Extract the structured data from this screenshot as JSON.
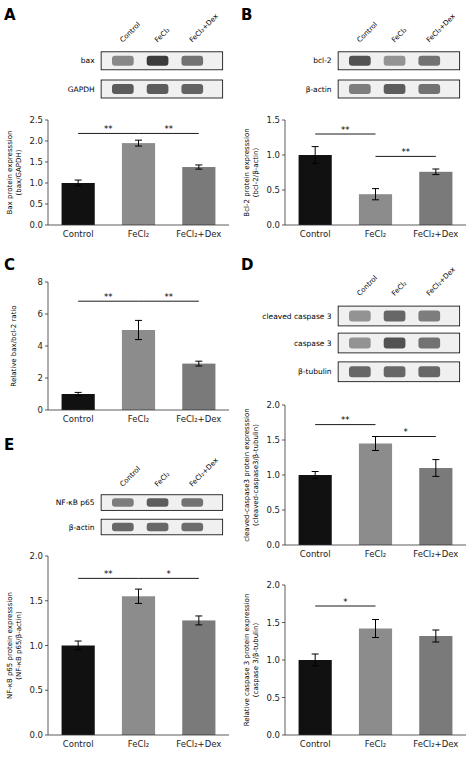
{
  "chart_data": [
    {
      "type": "blot",
      "title": "A",
      "categories": [
        "Control",
        "FeCl₂",
        "FeCl₂+Dex"
      ],
      "series": [
        {
          "name": "bax",
          "values": [
            0.55,
            0.9,
            0.65
          ]
        },
        {
          "name": "GAPDH",
          "values": [
            0.75,
            0.75,
            0.72
          ]
        }
      ]
    },
    {
      "type": "bar",
      "categories": [
        "Control",
        "FeCl₂",
        "FeCl₂+Dex"
      ],
      "values": [
        1.0,
        1.95,
        1.38
      ],
      "errors": [
        0.07,
        0.07,
        0.05
      ],
      "colors": [
        "#111111",
        "#8c8c8c",
        "#7a7a7a"
      ],
      "ylabel": "Bax protein expresssion\n(bax/GAPDH)",
      "ylim": [
        0,
        2.5
      ],
      "yticks": [
        {
          "value": 0,
          "label": "0.0"
        },
        0.5,
        {
          "value": 1,
          "label": "1.0"
        },
        1.5,
        {
          "value": 2,
          "label": "2.0"
        },
        2.5
      ],
      "annotations": [
        {
          "x1": 0,
          "x2": 1,
          "y": 2.18,
          "label": "**"
        },
        {
          "x1": 1,
          "x2": 2,
          "y": 2.18,
          "label": "**"
        }
      ]
    },
    {
      "type": "blot",
      "title": "B",
      "categories": [
        "Control",
        "FeCl₂",
        "FeCl₂+Dex"
      ],
      "series": [
        {
          "name": "bcl-2",
          "values": [
            0.8,
            0.5,
            0.65
          ]
        },
        {
          "name": "β-actin",
          "values": [
            0.6,
            0.75,
            0.65
          ]
        }
      ]
    },
    {
      "type": "bar",
      "categories": [
        "Control",
        "FeCl₂",
        "FeCl₂+Dex"
      ],
      "values": [
        1.0,
        0.44,
        0.76
      ],
      "errors": [
        0.12,
        0.08,
        0.04
      ],
      "colors": [
        "#111111",
        "#8c8c8c",
        "#7a7a7a"
      ],
      "ylabel": "Bcl-2 protein expresssion\n(bcl-2/β-actin)",
      "ylim": [
        0,
        1.5
      ],
      "yticks": [
        {
          "value": 0,
          "label": "0.0"
        },
        0.5,
        {
          "value": 1,
          "label": "1.0"
        },
        1.5
      ],
      "annotations": [
        {
          "x1": 0,
          "x2": 1,
          "y": 1.3,
          "label": "**"
        },
        {
          "x1": 1,
          "x2": 2,
          "y": 0.98,
          "label": "**"
        }
      ]
    },
    {
      "type": "bar",
      "title": "C",
      "categories": [
        "Control",
        "FeCl₂",
        "FeCl₂+Dex"
      ],
      "values": [
        1.0,
        5.0,
        2.9
      ],
      "errors": [
        0.1,
        0.6,
        0.15
      ],
      "colors": [
        "#111111",
        "#8c8c8c",
        "#7a7a7a"
      ],
      "ylabel": "Relative bax/bcl-2 ratio",
      "ylim": [
        0,
        8
      ],
      "yticks": [
        0,
        2,
        4,
        6,
        8
      ],
      "annotations": [
        {
          "x1": 0,
          "x2": 1,
          "y": 6.8,
          "label": "**"
        },
        {
          "x1": 1,
          "x2": 2,
          "y": 6.8,
          "label": "**"
        }
      ]
    },
    {
      "type": "blot",
      "title": "D",
      "categories": [
        "Control",
        "FeCl₂",
        "FeCl₂+Dex"
      ],
      "series": [
        {
          "name": "cleaved caspase 3",
          "values": [
            0.5,
            0.7,
            0.6
          ]
        },
        {
          "name": "caspase 3",
          "values": [
            0.5,
            0.8,
            0.65
          ]
        },
        {
          "name": "β-tubulin",
          "values": [
            0.7,
            0.7,
            0.7
          ]
        }
      ]
    },
    {
      "type": "bar",
      "categories": [
        "Control",
        "FeCl₂",
        "FeCl₂+Dex"
      ],
      "values": [
        1.0,
        1.45,
        1.1
      ],
      "errors": [
        0.05,
        0.1,
        0.12
      ],
      "colors": [
        "#111111",
        "#8c8c8c",
        "#7a7a7a"
      ],
      "ylabel": "cleaved-caspase3 protein expresssion\n(cleaved-caspase3/β-tubulin)",
      "ylim": [
        0,
        2.0
      ],
      "yticks": [
        {
          "value": 0,
          "label": "0.0"
        },
        0.5,
        {
          "value": 1,
          "label": "1.0"
        },
        1.5,
        {
          "value": 2,
          "label": "2.0"
        }
      ],
      "annotations": [
        {
          "x1": 0,
          "x2": 1,
          "y": 1.72,
          "label": "**"
        },
        {
          "x1": 1,
          "x2": 2,
          "y": 1.55,
          "label": "*"
        }
      ]
    },
    {
      "type": "bar",
      "categories": [
        "Control",
        "FeCl₂",
        "FeCl₂+Dex"
      ],
      "values": [
        1.0,
        1.42,
        1.32
      ],
      "errors": [
        0.08,
        0.12,
        0.08
      ],
      "colors": [
        "#111111",
        "#8c8c8c",
        "#7a7a7a"
      ],
      "ylabel": "Relative caspase 3 protein expression\n(caspase 3/β-tubulin)",
      "ylim": [
        0,
        2.0
      ],
      "yticks": [
        {
          "value": 0,
          "label": "0.0"
        },
        0.5,
        {
          "value": 1,
          "label": "1.0"
        },
        1.5,
        {
          "value": 2,
          "label": "2.0"
        }
      ],
      "annotations": [
        {
          "x1": 0,
          "x2": 1,
          "y": 1.72,
          "label": "*"
        }
      ]
    },
    {
      "type": "blot",
      "title": "E",
      "categories": [
        "Control",
        "FeCl₂",
        "FeCl₂+Dex"
      ],
      "series": [
        {
          "name": "NF-κB p65",
          "values": [
            0.6,
            0.75,
            0.65
          ]
        },
        {
          "name": "β-actin",
          "values": [
            0.7,
            0.7,
            0.68
          ]
        }
      ]
    },
    {
      "type": "bar",
      "categories": [
        "Control",
        "FeCl₂",
        "FeCl₂+Dex"
      ],
      "values": [
        1.0,
        1.55,
        1.28
      ],
      "errors": [
        0.05,
        0.08,
        0.05
      ],
      "colors": [
        "#111111",
        "#8c8c8c",
        "#7a7a7a"
      ],
      "ylabel": "NF-κB p65 protein expresssion\n(NF-κB p65/β-actin)",
      "ylim": [
        0,
        2.0
      ],
      "yticks": [
        {
          "value": 0,
          "label": "0.0"
        },
        0.5,
        {
          "value": 1,
          "label": "1.0"
        },
        1.5,
        {
          "value": 2,
          "label": "2.0"
        }
      ],
      "annotations": [
        {
          "x1": 0,
          "x2": 1,
          "y": 1.75,
          "label": "**"
        },
        {
          "x1": 1,
          "x2": 2,
          "y": 1.75,
          "label": "*"
        }
      ]
    }
  ]
}
